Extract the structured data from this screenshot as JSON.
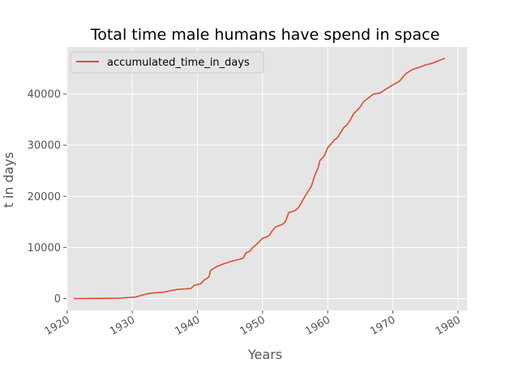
{
  "chart_data": {
    "type": "line",
    "title": "Total time male humans have spend in space",
    "xlabel": "Years",
    "ylabel": "t in days",
    "xlim": [
      1919.9,
      1981.4
    ],
    "ylim": [
      -2300,
      49200
    ],
    "xticks": [
      1920,
      1930,
      1940,
      1950,
      1960,
      1970,
      1980
    ],
    "yticks": [
      0,
      10000,
      20000,
      30000,
      40000
    ],
    "grid": true,
    "legend_position": "top-left",
    "series": [
      {
        "name": "accumulated_time_in_days",
        "color": "#E24A33",
        "x": [
          1921.0,
          1925.0,
          1928.0,
          1929.5,
          1930.5,
          1931.5,
          1932.5,
          1934.0,
          1935.0,
          1936.0,
          1937.0,
          1938.0,
          1939.0,
          1939.5,
          1940.5,
          1941.0,
          1941.5,
          1941.8,
          1942.0,
          1942.5,
          1943.0,
          1944.0,
          1945.0,
          1946.5,
          1947.0,
          1947.5,
          1948.0,
          1948.5,
          1949.0,
          1950.0,
          1950.5,
          1951.0,
          1951.5,
          1952.0,
          1953.0,
          1953.5,
          1954.0,
          1955.0,
          1955.5,
          1956.0,
          1956.5,
          1957.0,
          1957.5,
          1958.0,
          1958.5,
          1958.8,
          1959.2,
          1959.5,
          1960.0,
          1960.5,
          1961.0,
          1961.5,
          1962.0,
          1962.5,
          1963.0,
          1963.5,
          1964.0,
          1964.5,
          1965.0,
          1965.5,
          1966.0,
          1967.0,
          1968.0,
          1969.0,
          1970.0,
          1971.0,
          1972.0,
          1973.0,
          1974.0,
          1975.0,
          1976.0,
          1977.0,
          1978.0
        ],
        "y": [
          0,
          50,
          100,
          200,
          300,
          700,
          1000,
          1200,
          1300,
          1600,
          1800,
          1900,
          2000,
          2600,
          2900,
          3600,
          4000,
          4300,
          5500,
          5900,
          6300,
          6800,
          7200,
          7700,
          7900,
          9000,
          9200,
          10000,
          10500,
          11800,
          12000,
          12300,
          13300,
          14000,
          14500,
          15000,
          16800,
          17200,
          17800,
          18800,
          20000,
          21000,
          22000,
          24000,
          25500,
          27000,
          27500,
          28000,
          29500,
          30200,
          31000,
          31500,
          32500,
          33500,
          34000,
          35000,
          36200,
          36800,
          37500,
          38500,
          39000,
          40000,
          40200,
          41000,
          41800,
          42500,
          44000,
          44800,
          45200,
          45700,
          46000,
          46500,
          47000
        ]
      }
    ]
  }
}
